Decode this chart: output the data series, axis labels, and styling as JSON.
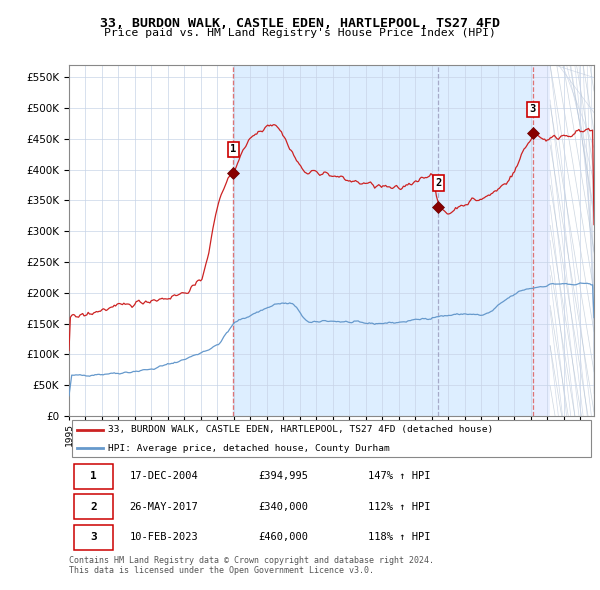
{
  "title": "33, BURDON WALK, CASTLE EDEN, HARTLEPOOL, TS27 4FD",
  "subtitle": "Price paid vs. HM Land Registry's House Price Index (HPI)",
  "ylim": [
    0,
    570000
  ],
  "yticks": [
    0,
    50000,
    100000,
    150000,
    200000,
    250000,
    300000,
    350000,
    400000,
    450000,
    500000,
    550000
  ],
  "xlim_start": 1995.0,
  "xlim_end": 2026.83,
  "sale1_date": 2004.96,
  "sale1_price": 394995,
  "sale1_label": "1",
  "sale1_display": "17-DEC-2004",
  "sale1_amount": "£394,995",
  "sale1_hpi": "147% ↑ HPI",
  "sale2_date": 2017.4,
  "sale2_price": 340000,
  "sale2_label": "2",
  "sale2_display": "26-MAY-2017",
  "sale2_amount": "£340,000",
  "sale2_hpi": "112% ↑ HPI",
  "sale3_date": 2023.12,
  "sale3_price": 460000,
  "sale3_label": "3",
  "sale3_display": "10-FEB-2023",
  "sale3_amount": "£460,000",
  "sale3_hpi": "118% ↑ HPI",
  "hatch_start": 2024.17,
  "hpi_color": "#6699cc",
  "price_color": "#cc2222",
  "vline_color_sale1": "#dd6666",
  "vline_color_sale23": "#9999bb",
  "footnote": "Contains HM Land Registry data © Crown copyright and database right 2024.\nThis data is licensed under the Open Government Licence v3.0.",
  "legend_label_price": "33, BURDON WALK, CASTLE EDEN, HARTLEPOOL, TS27 4FD (detached house)",
  "legend_label_hpi": "HPI: Average price, detached house, County Durham",
  "chart_bg": "#ffffff",
  "span1_color": "#ddeeff",
  "span2_color": "#ddeeff",
  "span3_color": "#eef3ff"
}
